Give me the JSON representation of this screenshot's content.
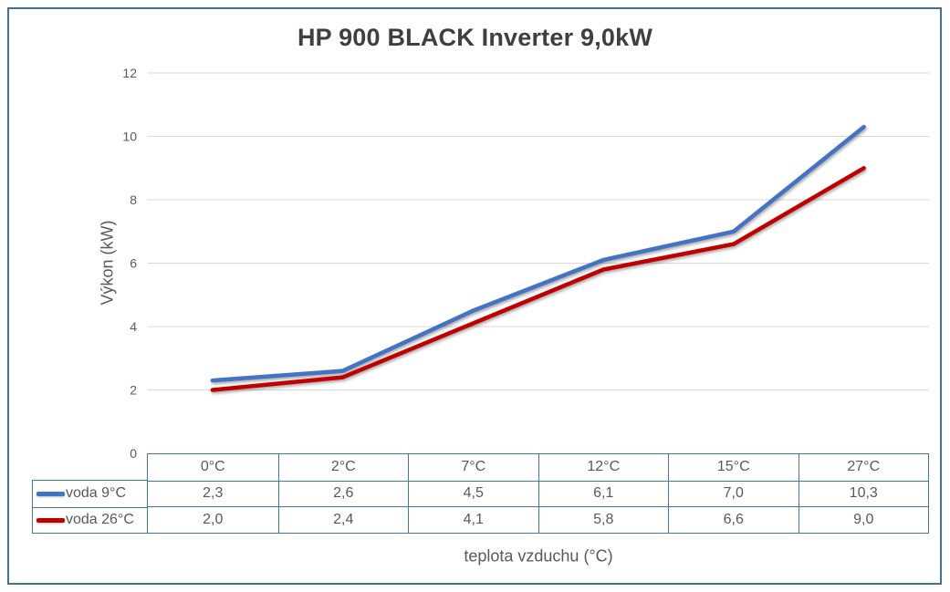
{
  "chart_data": {
    "type": "line",
    "title": "HP 900 BLACK Inverter 9,0kW",
    "categories": [
      "0°C",
      "2°C",
      "7°C",
      "12°C",
      "15°C",
      "27°C"
    ],
    "series": [
      {
        "name": "voda 9°C",
        "color": "#4472c4",
        "values": [
          2.3,
          2.6,
          4.5,
          6.1,
          7.0,
          10.3
        ]
      },
      {
        "name": "voda 26°C",
        "color": "#c00000",
        "values": [
          2.0,
          2.4,
          4.1,
          5.8,
          6.6,
          9.0
        ]
      }
    ],
    "xlabel": "teplota vzduchu (°C)",
    "ylabel": "Výkon (kW)",
    "ylim": [
      0,
      12
    ],
    "yticks": [
      0,
      2,
      4,
      6,
      8,
      10,
      12
    ],
    "grid": true,
    "legend_position": "data-table-left",
    "value_decimal_separator": ",",
    "data_table_shown": true
  },
  "colors": {
    "series_blue": "#4472c4",
    "series_red": "#c00000",
    "gridline": "#d9d9d9",
    "table_border": "#4577a6",
    "frame_border": "#446e9b",
    "axis_text": "#595959",
    "title_text": "#3f3f3f"
  }
}
